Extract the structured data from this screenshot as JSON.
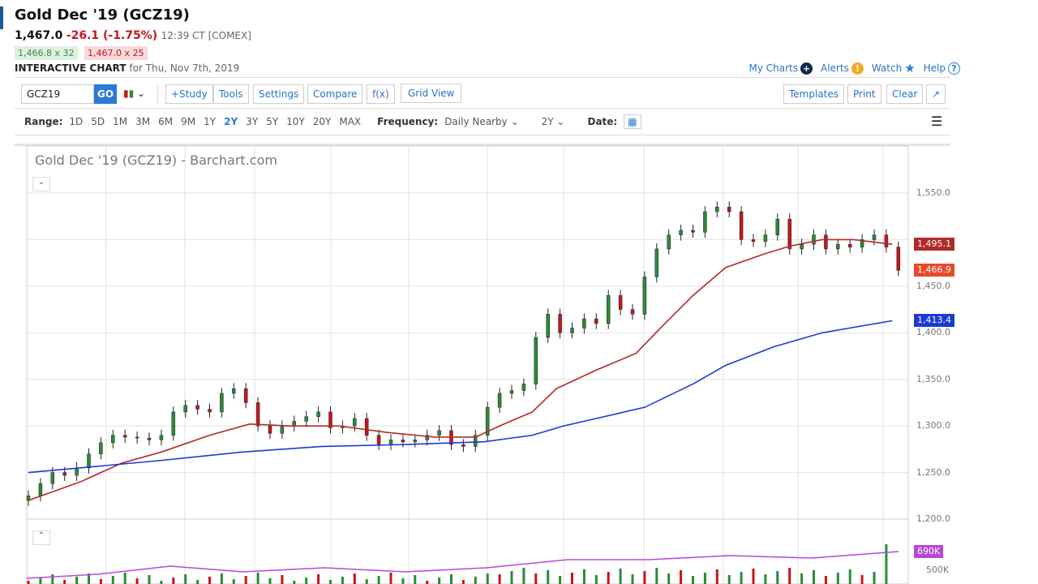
{
  "header": {
    "title": "Gold Dec '19 (GCZ19)",
    "last": "1,467.0",
    "change": "-26.1 (-1.75%)",
    "time": "12:39 CT [COMEX]",
    "bid": "1,466.8 x 32",
    "ask": "1,467.0 x 25",
    "chart_label": "INTERACTIVE CHART",
    "chart_date": "for Thu, Nov 7th, 2019"
  },
  "links": {
    "my_charts": "My Charts",
    "alerts": "Alerts",
    "watch": "Watch",
    "help": "Help"
  },
  "toolbar": {
    "symbol": "GCZ19",
    "go": "GO",
    "study": "+Study",
    "tools": "Tools",
    "settings": "Settings",
    "compare": "Compare",
    "fx": "f(x)",
    "grid": "Grid View",
    "templates": "Templates",
    "print": "Print",
    "clear": "Clear",
    "expand": "↗"
  },
  "range": {
    "label": "Range:",
    "options": [
      "1D",
      "5D",
      "1M",
      "3M",
      "6M",
      "9M",
      "1Y",
      "2Y",
      "3Y",
      "5Y",
      "10Y",
      "20Y",
      "MAX"
    ],
    "active": "2Y",
    "frequency_label": "Frequency:",
    "frequency": "Daily Nearby",
    "period": "2Y",
    "date_label": "Date:"
  },
  "chart_data": {
    "type": "candlestick",
    "title": "Gold Dec '19 (GCZ19) - Barchart.com",
    "yticks": [
      "1,550.0",
      "1,450.0",
      "1,400.0",
      "1,350.0",
      "1,300.0",
      "1,250.0",
      "1,200.0"
    ],
    "ylim": [
      1200,
      1550
    ],
    "closes": [
      1225,
      1238,
      1250,
      1247,
      1255,
      1270,
      1282,
      1290,
      1288,
      1287,
      1285,
      1290,
      1315,
      1322,
      1318,
      1315,
      1335,
      1340,
      1325,
      1300,
      1292,
      1300,
      1305,
      1310,
      1315,
      1298,
      1300,
      1308,
      1290,
      1280,
      1285,
      1283,
      1285,
      1290,
      1295,
      1280,
      1278,
      1290,
      1320,
      1335,
      1338,
      1345,
      1395,
      1420,
      1400,
      1405,
      1415,
      1410,
      1440,
      1425,
      1420,
      1460,
      1490,
      1505,
      1510,
      1508,
      1530,
      1535,
      1530,
      1500,
      1498,
      1505,
      1522,
      1490,
      1495,
      1505,
      1490,
      1495,
      1492,
      1500,
      1505,
      1492,
      1467
    ],
    "ma_red": [
      [
        0,
        1220
      ],
      [
        4.3,
        1240
      ],
      [
        7.7,
        1260
      ],
      [
        11,
        1272
      ],
      [
        15,
        1290
      ],
      [
        18.3,
        1302
      ],
      [
        21.7,
        1300
      ],
      [
        25.7,
        1300
      ],
      [
        29.7,
        1293
      ],
      [
        33.7,
        1288
      ],
      [
        37,
        1288
      ],
      [
        39,
        1300
      ],
      [
        41.7,
        1315
      ],
      [
        43.7,
        1340
      ],
      [
        47,
        1360
      ],
      [
        50.3,
        1378
      ],
      [
        52.3,
        1405
      ],
      [
        55,
        1440
      ],
      [
        57.7,
        1470
      ],
      [
        61,
        1485
      ],
      [
        63,
        1493
      ],
      [
        65.7,
        1500
      ],
      [
        68.3,
        1500
      ],
      [
        71.5,
        1495
      ]
    ],
    "ma_blue": [
      [
        0,
        1250
      ],
      [
        4.3,
        1255
      ],
      [
        11,
        1263
      ],
      [
        17.7,
        1272
      ],
      [
        24.3,
        1278
      ],
      [
        31,
        1280
      ],
      [
        37.7,
        1283
      ],
      [
        41.7,
        1290
      ],
      [
        44.3,
        1300
      ],
      [
        51,
        1320
      ],
      [
        55,
        1345
      ],
      [
        57.7,
        1365
      ],
      [
        61.7,
        1385
      ],
      [
        65.7,
        1400
      ],
      [
        71.5,
        1413
      ]
    ],
    "tags": {
      "ma_red": "1,495.1",
      "last": "1,466.9",
      "ma_blue": "1,413.4",
      "volume_ma": "690K",
      "volume_tick": "500K"
    },
    "colors": {
      "up": "#2a8a3a",
      "down": "#c4161c",
      "ma_red": "#b22a2a",
      "ma_blue": "#1a3ad6",
      "vol_ma": "#b848d8"
    },
    "volume_ma_level": "690K"
  }
}
